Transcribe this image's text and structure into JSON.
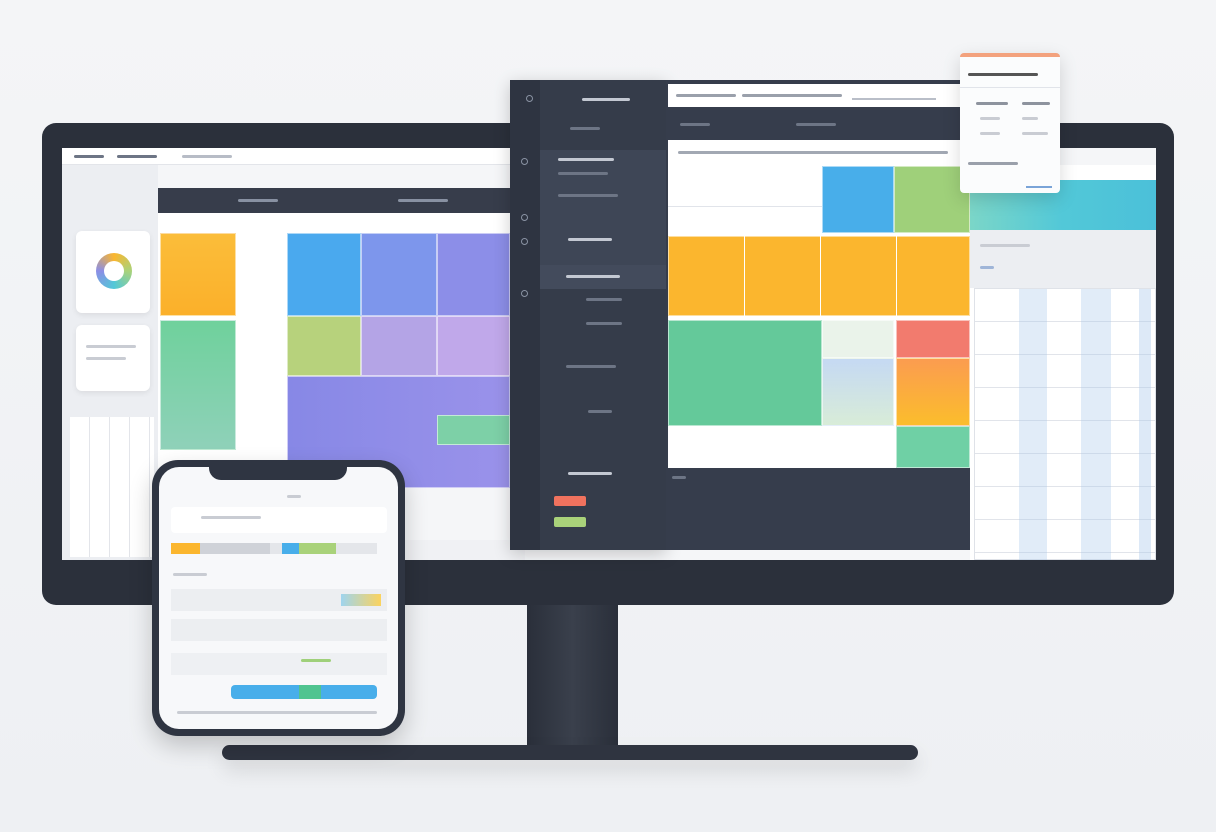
{
  "colors": {
    "bezel": "#2b303b",
    "dark_panel": "#363d4c",
    "orange": "#fbb62e",
    "blue": "#4baee8",
    "purple": "#8b8ee6",
    "green": "#6ccb99",
    "lime": "#a9d27a",
    "lavender": "#b7a8e6",
    "red": "#f27b6e",
    "teal": "#52c8d8",
    "card_accent": "#f3a27e"
  },
  "icons": [
    "search-icon",
    "calendar-icon",
    "settings-icon",
    "user-icon",
    "bell-icon",
    "menu-icon"
  ],
  "phone": {
    "progress_fraction": 0.62
  }
}
